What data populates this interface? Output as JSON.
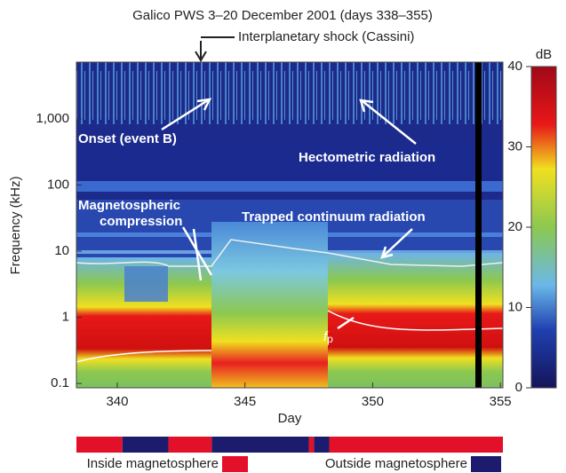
{
  "chart_data": {
    "type": "spectrogram",
    "title": "Galico PWS 3–20 December 2001 (days 338–355)",
    "x_label": "Day",
    "y_label": "Frequency (kHz)",
    "xlim": [
      338.4,
      355.1
    ],
    "xticks": [
      340,
      345,
      350,
      355
    ],
    "ylim": [
      0.086,
      7200
    ],
    "log_y": true,
    "yticks": [
      0.1,
      1,
      10,
      100,
      {
        "value": 1000,
        "label": "1,000"
      }
    ],
    "colorbar": {
      "label": "dB",
      "lim": [
        0,
        40
      ],
      "ticks": [
        0,
        10,
        20,
        30,
        40
      ]
    },
    "shock_label": "Interplanetary shock (Cassini)",
    "annotations": {
      "onset": "Onset (event B)",
      "hectometric": "Hectometric radiation",
      "compression": [
        "Magnetospheric",
        "compression"
      ],
      "continuum": "Trapped continuum radiation",
      "plasma_frequency": {
        "symbol": "f",
        "subscript": "p"
      }
    },
    "regions": [
      {
        "name": "Inside magnetosphere",
        "color": "#e3102a",
        "intervals": [
          [
            338.4,
            340.2
          ],
          [
            342.0,
            343.7
          ],
          [
            347.5,
            347.7
          ],
          [
            348.3,
            355.1
          ]
        ]
      },
      {
        "name": "Outside magnetosphere",
        "color": "#1c1b6e",
        "intervals": [
          [
            340.2,
            342.0
          ],
          [
            343.7,
            347.5
          ],
          [
            347.7,
            348.3
          ]
        ]
      }
    ]
  }
}
